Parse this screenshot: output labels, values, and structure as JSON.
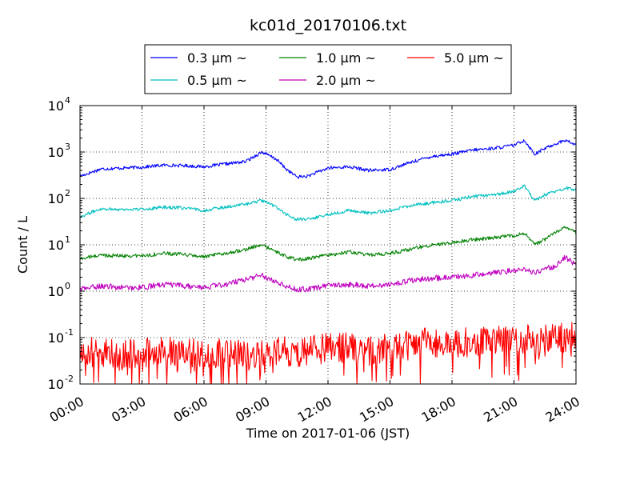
{
  "chart_data": {
    "type": "line",
    "title": "kc01d_20170106.txt",
    "xlabel": "Time on 2017-01-06 (JST)",
    "ylabel": "Count / L",
    "y_scale": "log",
    "ylim": [
      0.01,
      10000
    ],
    "xlim": [
      "00:00",
      "24:00"
    ],
    "grid": true,
    "legend_position": "top-center",
    "x_ticks": [
      "00:00",
      "03:00",
      "06:00",
      "09:00",
      "12:00",
      "15:00",
      "18:00",
      "21:00",
      "24:00"
    ],
    "y_ticks": [
      {
        "base": "10",
        "exp": "-2"
      },
      {
        "base": "10",
        "exp": "-1"
      },
      {
        "base": "10",
        "exp": "0"
      },
      {
        "base": "10",
        "exp": "1"
      },
      {
        "base": "10",
        "exp": "2"
      },
      {
        "base": "10",
        "exp": "3"
      },
      {
        "base": "10",
        "exp": "4"
      }
    ],
    "x_hours": [
      0,
      1,
      2,
      3,
      4,
      5,
      6,
      7,
      8,
      8.8,
      9.5,
      10,
      10.5,
      11,
      12,
      13,
      14,
      15,
      16,
      17,
      18,
      19,
      20,
      21,
      21.5,
      22,
      22.5,
      23,
      23.5,
      24
    ],
    "series": [
      {
        "name": "0.3 μm ~",
        "color": "#0000ff",
        "values": [
          300,
          430,
          450,
          470,
          520,
          510,
          480,
          550,
          620,
          1000,
          700,
          420,
          290,
          300,
          450,
          480,
          400,
          420,
          600,
          800,
          900,
          1100,
          1200,
          1400,
          1800,
          900,
          1200,
          1500,
          1800,
          1400
        ]
      },
      {
        "name": "0.5 μm ~",
        "color": "#00bfbf",
        "values": [
          40,
          60,
          58,
          58,
          65,
          62,
          55,
          65,
          75,
          90,
          65,
          45,
          35,
          35,
          45,
          55,
          48,
          55,
          70,
          80,
          90,
          110,
          120,
          140,
          190,
          90,
          120,
          140,
          170,
          150
        ]
      },
      {
        "name": "1.0 μm ~",
        "color": "#008000",
        "values": [
          5,
          6,
          5.8,
          5.8,
          6.5,
          6.2,
          5.5,
          6.5,
          8,
          10,
          7,
          5.5,
          4.8,
          5,
          6,
          7,
          6,
          6.5,
          8,
          10,
          11,
          13,
          14,
          16,
          18,
          10,
          13,
          18,
          25,
          18
        ]
      },
      {
        "name": "2.0 μm ~",
        "color": "#bf00bf",
        "values": [
          1.1,
          1.3,
          1.2,
          1.2,
          1.4,
          1.3,
          1.2,
          1.4,
          1.8,
          2.2,
          1.6,
          1.3,
          1.1,
          1.1,
          1.3,
          1.4,
          1.3,
          1.4,
          1.7,
          1.9,
          2.0,
          2.2,
          2.5,
          2.8,
          3.0,
          2.5,
          3.0,
          3.5,
          5.5,
          3.5
        ]
      },
      {
        "name": "5.0 μm ~",
        "color": "#ff0000",
        "values": [
          0.05,
          0.05,
          0.04,
          0.05,
          0.05,
          0.05,
          0.04,
          0.05,
          0.04,
          0.05,
          0.05,
          0.05,
          0.04,
          0.05,
          0.06,
          0.06,
          0.05,
          0.06,
          0.07,
          0.08,
          0.08,
          0.08,
          0.08,
          0.09,
          0.1,
          0.09,
          0.09,
          0.1,
          0.1,
          0.1
        ]
      }
    ]
  }
}
